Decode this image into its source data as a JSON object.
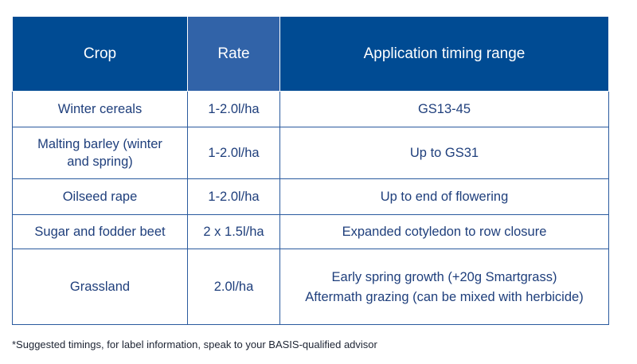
{
  "table": {
    "headers": [
      "Crop",
      "Rate",
      "Application timing range"
    ],
    "rows": [
      {
        "crop": [
          "Winter cereals"
        ],
        "rate": "1-2.0l/ha",
        "timing": [
          "GS13-45"
        ]
      },
      {
        "crop": [
          "Malting barley (winter",
          "and spring)"
        ],
        "rate": "1-2.0l/ha",
        "timing": [
          "Up to GS31"
        ]
      },
      {
        "crop": [
          "Oilseed rape"
        ],
        "rate": "1-2.0l/ha",
        "timing": [
          "Up to end of flowering"
        ]
      },
      {
        "crop": [
          "Sugar and fodder beet"
        ],
        "rate": "2 x 1.5l/ha",
        "timing": [
          "Expanded cotyledon to row closure"
        ]
      },
      {
        "crop": [
          "Grassland"
        ],
        "rate": "2.0l/ha",
        "timing": [
          "Early spring growth (+20g Smartgrass)",
          "Aftermath grazing (can be mixed with herbicide)"
        ]
      }
    ]
  },
  "footnote": "*Suggested timings, for label information, speak to your BASIS-qualified advisor",
  "colors": {
    "header_bg": "#004b93",
    "header_rate_bg": "#3163a8",
    "body_text": "#1f3f7c",
    "border": "#2a5a9e"
  }
}
